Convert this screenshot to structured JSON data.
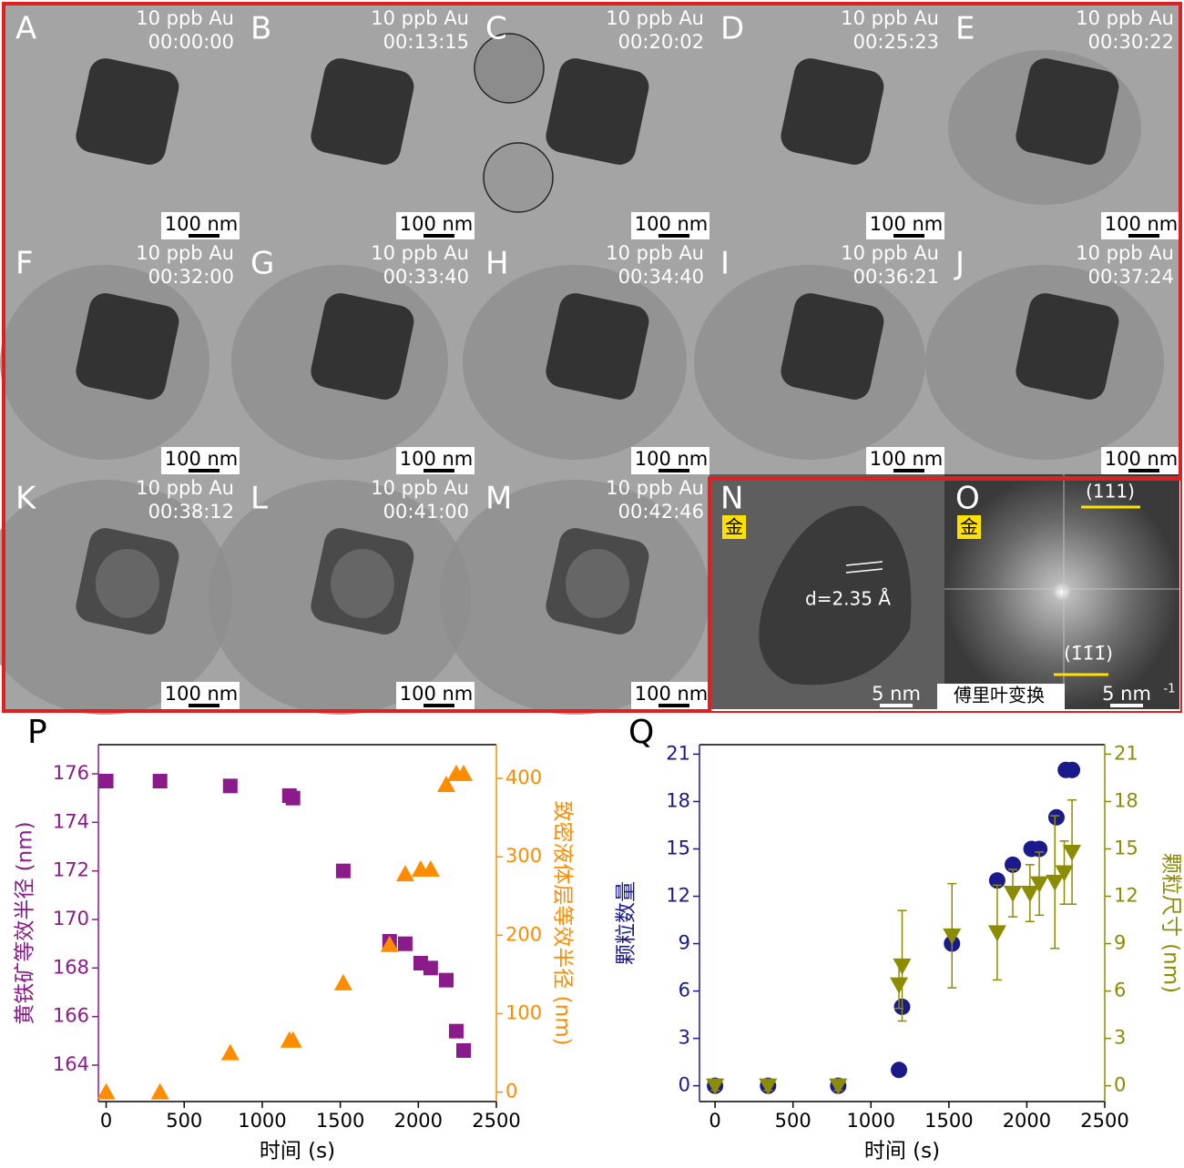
{
  "panels": [
    {
      "letter": "A",
      "condition": "10 ppb Au",
      "time": "00:00:00",
      "scale": "100 nm"
    },
    {
      "letter": "B",
      "condition": "10 ppb Au",
      "time": "00:13:15",
      "scale": "100 nm"
    },
    {
      "letter": "C",
      "condition": "10 ppb Au",
      "time": "00:20:02",
      "scale": "100 nm"
    },
    {
      "letter": "D",
      "condition": "10 ppb Au",
      "time": "00:25:23",
      "scale": "100 nm"
    },
    {
      "letter": "E",
      "condition": "10 ppb Au",
      "time": "00:30:22",
      "scale": "100 nm"
    },
    {
      "letter": "F",
      "condition": "10 ppb Au",
      "time": "00:32:00",
      "scale": "100 nm"
    },
    {
      "letter": "G",
      "condition": "10 ppb Au",
      "time": "00:33:40",
      "scale": "100 nm"
    },
    {
      "letter": "H",
      "condition": "10 ppb Au",
      "time": "00:34:40",
      "scale": "100 nm"
    },
    {
      "letter": "I",
      "condition": "10 ppb Au",
      "time": "00:36:21",
      "scale": "100 nm"
    },
    {
      "letter": "J",
      "condition": "10 ppb Au",
      "time": "00:37:24",
      "scale": "100 nm"
    },
    {
      "letter": "K",
      "condition": "10 ppb Au",
      "time": "00:38:12",
      "scale": "100 nm"
    },
    {
      "letter": "L",
      "condition": "10 ppb Au",
      "time": "00:41:00",
      "scale": "100 nm"
    },
    {
      "letter": "M",
      "condition": "10 ppb Au",
      "time": "00:42:46",
      "scale": "100 nm"
    },
    {
      "letter": "N",
      "tag": "金",
      "annotation": "d=2.35 Å",
      "scale": "5 nm"
    },
    {
      "letter": "O",
      "tag": "金",
      "spots": [
        "(111)",
        "(1̄1̄1̄)"
      ],
      "caption": "傅里叶变换",
      "scale": "5 nm",
      "scale_sup": "-1"
    }
  ],
  "chart_data": [
    {
      "type": "scatter",
      "label": "P",
      "xlabel": "时间 (s)",
      "ylabel": "黄铁矿等效半径 (nm)",
      "y2label": "致密液体层等效半径 (nm)",
      "xlim": [
        -50,
        2500
      ],
      "ylim": [
        162.5,
        177.2
      ],
      "y2lim": [
        -12,
        443
      ],
      "xticks": [
        0,
        500,
        1000,
        1500,
        2000,
        2500
      ],
      "yticks": [
        164,
        166,
        168,
        170,
        172,
        174,
        176
      ],
      "y2ticks": [
        0,
        100,
        200,
        300,
        400
      ],
      "series": [
        {
          "color": "#8b1a8b",
          "marker": "square",
          "x": [
            0,
            345,
            795,
            1174,
            1197,
            1519,
            1816,
            1916,
            2015,
            2079,
            2179,
            2243,
            2290
          ],
          "values": [
            175.7,
            175.7,
            175.5,
            175.1,
            175.0,
            172.0,
            169.1,
            169.0,
            168.2,
            168.0,
            167.5,
            165.4,
            164.6
          ]
        },
        {
          "color": "#ff8c00",
          "marker": "triangle",
          "axis": "y2",
          "x": [
            0,
            345,
            795,
            1174,
            1197,
            1519,
            1816,
            1916,
            2015,
            2079,
            2179,
            2243,
            2290
          ],
          "values": [
            0,
            0,
            50,
            66,
            66,
            139,
            188,
            278,
            284,
            284,
            392,
            406,
            406
          ]
        }
      ]
    },
    {
      "type": "scatter",
      "label": "Q",
      "xlabel": "时间 (s)",
      "ylabel": "颗粒数量",
      "y2label": "颗粒尺寸 (nm)",
      "xlim": [
        -100,
        2500
      ],
      "ylim": [
        -1,
        21.6
      ],
      "y2lim": [
        -1,
        21.6
      ],
      "xticks": [
        0,
        500,
        1000,
        1500,
        2000,
        2500
      ],
      "yticks": [
        0,
        3,
        6,
        9,
        12,
        15,
        18,
        21
      ],
      "y2ticks": [
        0,
        3,
        6,
        9,
        12,
        15,
        18,
        21
      ],
      "series": [
        {
          "color": "#1a1a8c",
          "marker": "circle",
          "x": [
            0,
            340,
            790,
            1180,
            1200,
            1520,
            1810,
            1910,
            2030,
            2080,
            2190,
            2250,
            2290
          ],
          "values": [
            0,
            0,
            0,
            1,
            5,
            9,
            13,
            14,
            15,
            15,
            17,
            20,
            20
          ]
        },
        {
          "color": "#8c8c00",
          "marker": "triangle-down",
          "axis": "y2",
          "x": [
            0,
            340,
            790,
            1180,
            1200,
            1520,
            1810,
            1910,
            2020,
            2080,
            2180,
            2240,
            2290
          ],
          "values": [
            0,
            0,
            0,
            6.4,
            7.6,
            9.5,
            9.7,
            12.2,
            12.2,
            12.8,
            12.9,
            13.5,
            14.8
          ],
          "errors": [
            0.3,
            0.3,
            0.3,
            1.5,
            3.5,
            3.3,
            3.0,
            1.5,
            1.8,
            2.0,
            4.2,
            2.0,
            3.3
          ]
        }
      ]
    }
  ]
}
